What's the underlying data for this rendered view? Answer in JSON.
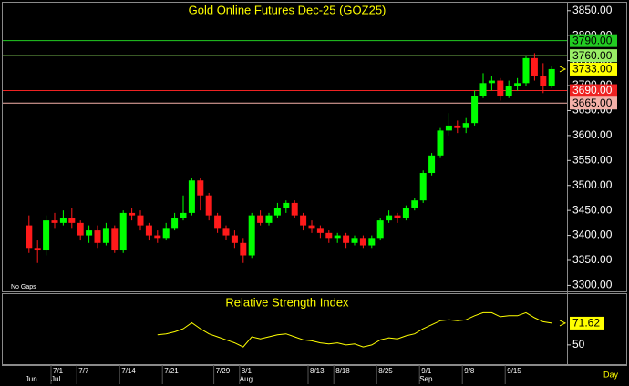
{
  "chart_data": [
    {
      "type": "candlestick",
      "title": "Gold Online Futures Dec-25 (GOZ25)",
      "note": "No Gaps",
      "x_label": "Day",
      "categories": [
        null,
        null,
        null,
        "7/1",
        null,
        null,
        "7/7",
        null,
        null,
        null,
        null,
        "7/14",
        null,
        null,
        null,
        null,
        "7/21",
        null,
        null,
        null,
        null,
        null,
        "7/29",
        null,
        null,
        "8/1",
        null,
        null,
        null,
        null,
        null,
        null,
        null,
        "8/13",
        null,
        null,
        "8/18",
        null,
        null,
        null,
        null,
        "8/25",
        null,
        null,
        null,
        null,
        "9/1",
        null,
        null,
        null,
        null,
        "9/8",
        null,
        null,
        null,
        null,
        "9/15",
        null,
        null,
        null,
        null,
        null
      ],
      "month_labels": [
        "Jun",
        null,
        null,
        "Jul",
        null,
        null,
        null,
        null,
        null,
        null,
        null,
        null,
        null,
        null,
        null,
        null,
        null,
        null,
        null,
        null,
        null,
        null,
        null,
        null,
        null,
        "Aug",
        null,
        null,
        null,
        null,
        null,
        null,
        null,
        null,
        null,
        null,
        null,
        null,
        null,
        null,
        null,
        null,
        null,
        null,
        null,
        null,
        "Sep",
        null,
        null,
        null,
        null,
        null,
        null,
        null,
        null,
        null,
        null,
        null,
        null,
        null,
        null,
        null
      ],
      "open": [
        3420,
        3375,
        3370,
        3430,
        3425,
        3435,
        3425,
        3400,
        3410,
        3385,
        3415,
        3370,
        3445,
        3440,
        3420,
        3400,
        3395,
        3415,
        3435,
        3445,
        3510,
        3480,
        3440,
        3415,
        3400,
        3385,
        3360,
        3440,
        3425,
        3440,
        3455,
        3465,
        3440,
        3420,
        3415,
        3405,
        3395,
        3400,
        3385,
        3395,
        3380,
        3395,
        3430,
        3440,
        3435,
        3455,
        3470,
        3525,
        3560,
        3610,
        3620,
        3615,
        3625,
        3680,
        3705,
        3710,
        3680,
        3700,
        3705,
        3755,
        3720,
        3700
      ],
      "high": [
        3440,
        3390,
        3440,
        3445,
        3450,
        3455,
        3430,
        3420,
        3420,
        3425,
        3420,
        3450,
        3455,
        3450,
        3425,
        3410,
        3425,
        3445,
        3480,
        3515,
        3515,
        3485,
        3445,
        3420,
        3410,
        3395,
        3445,
        3450,
        3445,
        3465,
        3470,
        3470,
        3445,
        3430,
        3420,
        3410,
        3405,
        3405,
        3400,
        3400,
        3400,
        3435,
        3450,
        3445,
        3460,
        3475,
        3530,
        3565,
        3615,
        3645,
        3630,
        3635,
        3690,
        3725,
        3720,
        3715,
        3710,
        3715,
        3760,
        3765,
        3745,
        3740
      ],
      "low": [
        3365,
        3345,
        3360,
        3415,
        3420,
        3415,
        3390,
        3385,
        3375,
        3380,
        3365,
        3365,
        3430,
        3410,
        3390,
        3385,
        3390,
        3410,
        3430,
        3440,
        3450,
        3430,
        3405,
        3390,
        3375,
        3345,
        3355,
        3420,
        3420,
        3435,
        3445,
        3435,
        3410,
        3405,
        3395,
        3385,
        3385,
        3375,
        3380,
        3375,
        3375,
        3390,
        3425,
        3425,
        3430,
        3450,
        3465,
        3520,
        3555,
        3600,
        3605,
        3605,
        3620,
        3675,
        3690,
        3670,
        3675,
        3690,
        3700,
        3710,
        3685,
        3695
      ],
      "close": [
        3375,
        3370,
        3430,
        3425,
        3435,
        3425,
        3400,
        3410,
        3385,
        3415,
        3370,
        3445,
        3440,
        3420,
        3400,
        3395,
        3415,
        3435,
        3445,
        3510,
        3480,
        3440,
        3415,
        3400,
        3385,
        3360,
        3440,
        3425,
        3440,
        3455,
        3465,
        3440,
        3420,
        3415,
        3405,
        3395,
        3400,
        3385,
        3395,
        3380,
        3395,
        3430,
        3440,
        3435,
        3455,
        3470,
        3525,
        3560,
        3610,
        3620,
        3615,
        3625,
        3680,
        3705,
        3710,
        3680,
        3700,
        3705,
        3755,
        3720,
        3700,
        3733
      ],
      "up_color": "#00ff00",
      "down_color": "#ff1a1a",
      "ylim": [
        3288,
        3866
      ],
      "yticks": [
        {
          "value": 3300,
          "label": "3300.00"
        },
        {
          "value": 3350,
          "label": "3350.00"
        },
        {
          "value": 3400,
          "label": "3400.00"
        },
        {
          "value": 3450,
          "label": "3450.00"
        },
        {
          "value": 3500,
          "label": "3500.00"
        },
        {
          "value": 3550,
          "label": "3550.00"
        },
        {
          "value": 3600,
          "label": "3600.00"
        },
        {
          "value": 3650,
          "label": "3650.00"
        },
        {
          "value": 3700,
          "label": "3700.00"
        },
        {
          "value": 3750,
          "label": "3750.00"
        },
        {
          "value": 3800,
          "label": "3800.00"
        },
        {
          "value": 3850,
          "label": "3850.00"
        }
      ],
      "levels": [
        {
          "value": 3790,
          "label": "3790.00",
          "color": "#22cc22"
        },
        {
          "value": 3760,
          "label": "3760.00",
          "color": "#99ee66"
        },
        {
          "value": 3690,
          "label": "3690.00",
          "color": "#ee2222"
        },
        {
          "value": 3665,
          "label": "3665.00",
          "color": "#f4b0a8"
        }
      ],
      "price_label": {
        "value": 3733,
        "label": "3733.00",
        "color": "#ffff00"
      }
    },
    {
      "type": "line",
      "title": "Relative Strength Index",
      "color": "#ffff00",
      "values": [
        null,
        null,
        null,
        null,
        null,
        null,
        null,
        null,
        null,
        null,
        null,
        null,
        null,
        null,
        null,
        60,
        61,
        63,
        66,
        72,
        66,
        61,
        58,
        55,
        52,
        48,
        58,
        56,
        58,
        60,
        61,
        58,
        55,
        54,
        52,
        51,
        52,
        50,
        51,
        48,
        50,
        55,
        57,
        56,
        59,
        61,
        66,
        70,
        74,
        75,
        74,
        75,
        79,
        82,
        82,
        78,
        79,
        79,
        82,
        77,
        73,
        71.62
      ],
      "ylim": [
        30,
        100
      ],
      "yticks": [
        50
      ]
    }
  ]
}
